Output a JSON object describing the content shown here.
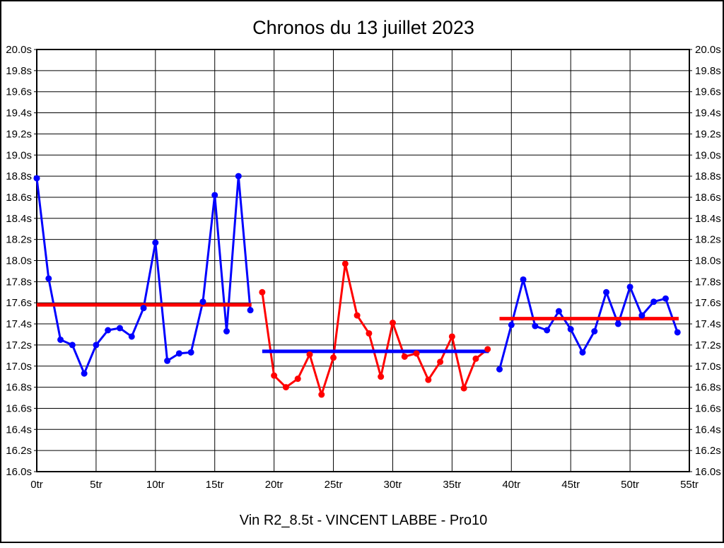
{
  "title": "Chronos du 13 juillet 2023",
  "caption": "Vin R2_8.5t - VINCENT LABBE - Pro10",
  "colors": {
    "blue": "#0000ff",
    "red": "#ff0000",
    "grid": "#000000",
    "background": "#ffffff"
  },
  "chart_data": {
    "type": "line",
    "title": "Chronos du 13 juillet 2023",
    "caption": "Vin R2_8.5t - VINCENT LABBE - Pro10",
    "x_unit": "tr",
    "y_unit": "s",
    "xlim": [
      0,
      55
    ],
    "ylim": [
      16.0,
      20.0
    ],
    "grid": true,
    "legend": "none",
    "x_tick_values": [
      0,
      5,
      10,
      15,
      20,
      25,
      30,
      35,
      40,
      45,
      50,
      55
    ],
    "x_tick_labels": [
      "0tr",
      "5tr",
      "10tr",
      "15tr",
      "20tr",
      "25tr",
      "30tr",
      "35tr",
      "40tr",
      "45tr",
      "50tr",
      "55tr"
    ],
    "y_tick_values": [
      20.0,
      19.8,
      19.6,
      19.4,
      19.2,
      19.0,
      18.8,
      18.6,
      18.4,
      18.2,
      18.0,
      17.8,
      17.6,
      17.4,
      17.2,
      17.0,
      16.8,
      16.6,
      16.4,
      16.2,
      16.0
    ],
    "y_tick_labels": [
      "20.0s",
      "19.8s",
      "19.6s",
      "19.4s",
      "19.2s",
      "19.0s",
      "18.8s",
      "18.6s",
      "18.4s",
      "18.2s",
      "18.0s",
      "17.8s",
      "17.6s",
      "17.4s",
      "17.2s",
      "17.0s",
      "16.8s",
      "16.6s",
      "16.4s",
      "16.2s",
      "16.0s"
    ],
    "series": [
      {
        "name": "relais-1-blue",
        "color": "#0000ff",
        "x": [
          0,
          1,
          2,
          3,
          4,
          5,
          6,
          7,
          8,
          9,
          10,
          11,
          12,
          13,
          14,
          15,
          16,
          17,
          18
        ],
        "values": [
          18.78,
          17.83,
          17.25,
          17.2,
          16.93,
          17.2,
          17.34,
          17.36,
          17.28,
          17.55,
          18.17,
          17.05,
          17.12,
          17.13,
          17.61,
          18.62,
          17.33,
          18.8,
          17.53
        ]
      },
      {
        "name": "relais-2-red",
        "color": "#ff0000",
        "x": [
          19,
          20,
          21,
          22,
          23,
          24,
          25,
          26,
          27,
          28,
          29,
          30,
          31,
          32,
          33,
          34,
          35,
          36,
          37,
          38
        ],
        "values": [
          17.7,
          16.91,
          16.8,
          16.88,
          17.11,
          16.73,
          17.08,
          17.97,
          17.48,
          17.31,
          16.9,
          17.41,
          17.09,
          17.12,
          16.87,
          17.04,
          17.28,
          16.79,
          17.07,
          17.16
        ]
      },
      {
        "name": "relais-3-blue",
        "color": "#0000ff",
        "x": [
          39,
          40,
          41,
          42,
          43,
          44,
          45,
          46,
          47,
          48,
          49,
          50,
          51,
          52,
          53,
          54
        ],
        "values": [
          16.97,
          17.39,
          17.82,
          17.38,
          17.34,
          17.52,
          17.35,
          17.13,
          17.33,
          17.7,
          17.4,
          17.75,
          17.48,
          17.61,
          17.64,
          17.32
        ]
      }
    ],
    "average_lines": [
      {
        "name": "moyenne-relais-1",
        "color": "#ff0000",
        "value": 17.58,
        "x_start": 0,
        "x_end": 18.1
      },
      {
        "name": "moyenne-relais-2",
        "color": "#0000ff",
        "value": 17.14,
        "x_start": 19,
        "x_end": 38.1
      },
      {
        "name": "moyenne-relais-3",
        "color": "#ff0000",
        "value": 17.45,
        "x_start": 39,
        "x_end": 54.1
      }
    ]
  }
}
